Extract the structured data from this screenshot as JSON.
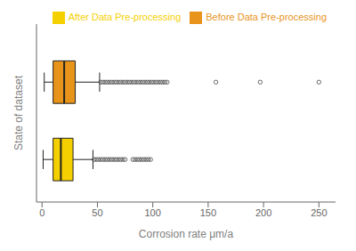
{
  "chart_data": {
    "type": "box",
    "orientation": "horizontal",
    "xlabel": "Corrosion rate μm/a",
    "ylabel": "State of dataset",
    "xlim": [
      -5,
      265
    ],
    "xticks": [
      0,
      50,
      100,
      150,
      200,
      250
    ],
    "tick_labels": "x",
    "legend": "upper right",
    "series": [
      {
        "name": "Before Data Pre-processing",
        "color": "#E8941A",
        "whisker_low": 2,
        "q1": 10,
        "median": 20,
        "q3": 30,
        "whisker_high": 52,
        "fliers": [
          53,
          55,
          57,
          59,
          61,
          63,
          65,
          67,
          69,
          71,
          73,
          75,
          77,
          79,
          81,
          83,
          85,
          87,
          89,
          91,
          93,
          95,
          97,
          99,
          101,
          103,
          105,
          107,
          109,
          111,
          113,
          157,
          197,
          250
        ]
      },
      {
        "name": "After Data Pre-processing",
        "color": "#F5D000",
        "whisker_low": 1,
        "q1": 10,
        "median": 17,
        "q3": 28,
        "whisker_high": 46,
        "fliers": [
          47,
          49,
          51,
          53,
          55,
          57,
          59,
          61,
          63,
          65,
          67,
          69,
          71,
          73,
          75,
          82,
          84,
          86,
          88,
          90,
          92,
          94,
          96,
          98
        ]
      }
    ]
  }
}
